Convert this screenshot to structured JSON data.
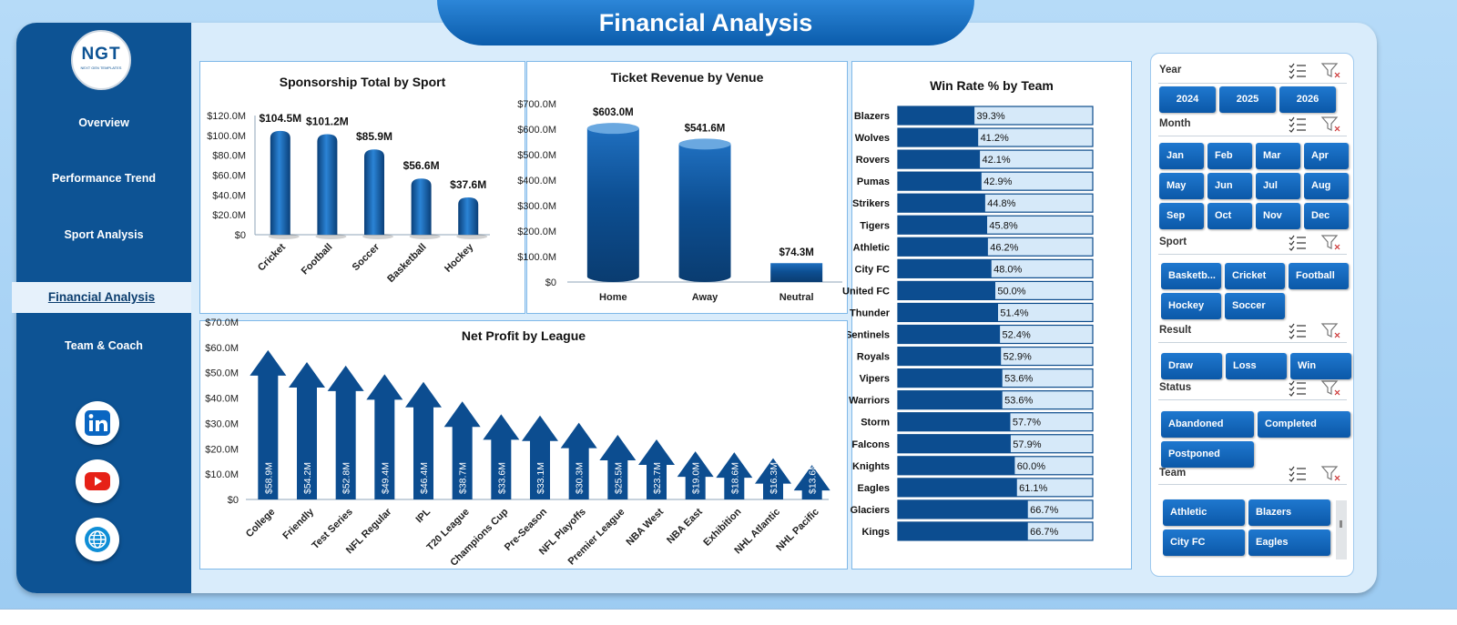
{
  "header": {
    "title": "Financial Analysis"
  },
  "logo": {
    "text": "NGT",
    "subtext": "NEXT GEN TEMPLATES"
  },
  "sidebar": {
    "items": [
      {
        "label": "Overview"
      },
      {
        "label": "Performance Trend"
      },
      {
        "label": "Sport Analysis"
      },
      {
        "label": "Financial Analysis"
      },
      {
        "label": "Team & Coach"
      }
    ],
    "active_index": 3,
    "social_icons": [
      "linkedin-icon",
      "youtube-icon",
      "globe-icon"
    ]
  },
  "chart_data": [
    {
      "id": "sponsorship",
      "type": "bar",
      "title": "Sponsorship Total by Sport",
      "categories": [
        "Cricket",
        "Football",
        "Soccer",
        "Basketball",
        "Hockey"
      ],
      "values": [
        104.5,
        101.2,
        85.9,
        56.6,
        37.6
      ],
      "data_labels": [
        "$104.5M",
        "$101.2M",
        "$85.9M",
        "$56.6M",
        "$37.6M"
      ],
      "yticks": [
        "$0",
        "$20.0M",
        "$40.0M",
        "$60.0M",
        "$80.0M",
        "$100.0M",
        "$120.0M"
      ],
      "ylim": [
        0,
        120
      ]
    },
    {
      "id": "ticket",
      "type": "bar",
      "title": "Ticket Revenue  by Venue",
      "categories": [
        "Home",
        "Away",
        "Neutral"
      ],
      "values": [
        603.0,
        541.6,
        74.3
      ],
      "data_labels": [
        "$603.0M",
        "$541.6M",
        "$74.3M"
      ],
      "yticks": [
        "$0",
        "$100.0M",
        "$200.0M",
        "$300.0M",
        "$400.0M",
        "$500.0M",
        "$600.0M",
        "$700.0M"
      ],
      "ylim": [
        0,
        700
      ]
    },
    {
      "id": "profit",
      "type": "bar",
      "title": "Net Profit by League",
      "categories": [
        "College",
        "Friendly",
        "Test Series",
        "NFL Regular",
        "IPL",
        "T20 League",
        "Champions Cup",
        "Pre-Season",
        "NFL Playoffs",
        "Premier League",
        "NBA West",
        "NBA East",
        "Exhibition",
        "NHL Atlantic",
        "NHL Pacific"
      ],
      "values": [
        58.9,
        54.2,
        52.8,
        49.4,
        46.4,
        38.7,
        33.6,
        33.1,
        30.3,
        25.5,
        23.7,
        19.0,
        18.6,
        16.3,
        13.6
      ],
      "data_labels": [
        "$58.9M",
        "$54.2M",
        "$52.8M",
        "$49.4M",
        "$46.4M",
        "$38.7M",
        "$33.6M",
        "$33.1M",
        "$30.3M",
        "$25.5M",
        "$23.7M",
        "$19.0M",
        "$18.6M",
        "$16.3M",
        "$13.6M"
      ],
      "yticks": [
        "$0",
        "$10.0M",
        "$20.0M",
        "$30.0M",
        "$40.0M",
        "$50.0M",
        "$60.0M",
        "$70.0M"
      ],
      "ylim": [
        0,
        70
      ]
    },
    {
      "id": "winrate",
      "type": "bar",
      "orientation": "horizontal",
      "title": "Win Rate % by Team",
      "categories": [
        "Blazers",
        "Wolves",
        "Rovers",
        "Pumas",
        "Strikers",
        "Tigers",
        "Athletic",
        "City FC",
        "United FC",
        "Thunder",
        "Sentinels",
        "Royals",
        "Vipers",
        "Warriors",
        "Storm",
        "Falcons",
        "Knights",
        "Eagles",
        "Glaciers",
        "Kings"
      ],
      "values": [
        39.3,
        41.2,
        42.1,
        42.9,
        44.8,
        45.8,
        46.2,
        48.0,
        50.0,
        51.4,
        52.4,
        52.9,
        53.6,
        53.6,
        57.7,
        57.9,
        60.0,
        61.1,
        66.7,
        66.7
      ],
      "data_labels": [
        "39.3%",
        "41.2%",
        "42.1%",
        "42.9%",
        "44.8%",
        "45.8%",
        "46.2%",
        "48.0%",
        "50.0%",
        "51.4%",
        "52.4%",
        "52.9%",
        "53.6%",
        "53.6%",
        "57.7%",
        "57.9%",
        "60.0%",
        "61.1%",
        "66.7%",
        "66.7%"
      ],
      "xlim": [
        0,
        100
      ]
    }
  ],
  "slicers": {
    "year": {
      "label": "Year",
      "options": [
        "2024",
        "2025",
        "2026"
      ]
    },
    "month": {
      "label": "Month",
      "options": [
        "Jan",
        "Feb",
        "Mar",
        "Apr",
        "May",
        "Jun",
        "Jul",
        "Aug",
        "Sep",
        "Oct",
        "Nov",
        "Dec"
      ]
    },
    "sport": {
      "label": "Sport",
      "options": [
        "Basketb...",
        "Cricket",
        "Football",
        "Hockey",
        "Soccer"
      ]
    },
    "result": {
      "label": "Result",
      "options": [
        "Draw",
        "Loss",
        "Win"
      ]
    },
    "status": {
      "label": "Status",
      "options": [
        "Abandoned",
        "Completed",
        "Postponed"
      ]
    },
    "team": {
      "label": "Team",
      "options": [
        "Athletic",
        "Blazers",
        "City FC",
        "Eagles"
      ]
    }
  },
  "colors": {
    "sidebar": "#0d5394",
    "bar_dark": "#0b4a8a",
    "bar_light": "#1b6fc2",
    "accent": "#0b5cab",
    "winrate_track": "#d6e9f9"
  }
}
